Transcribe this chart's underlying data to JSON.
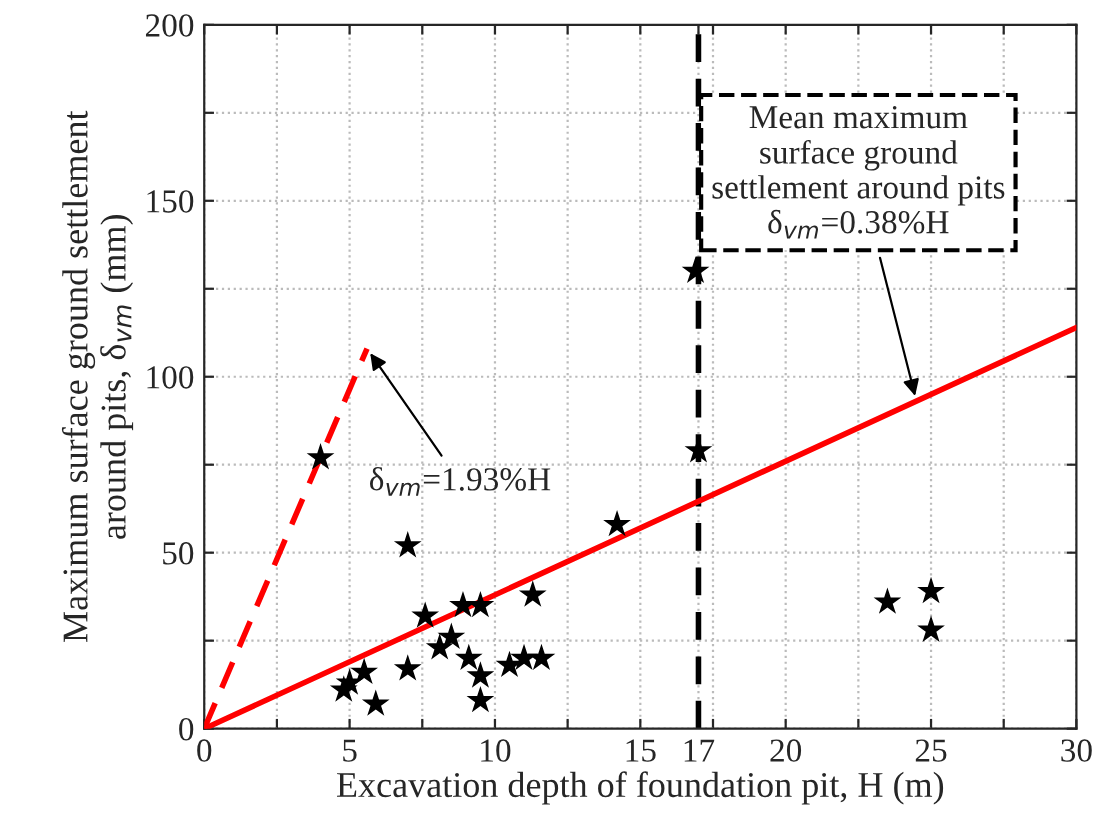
{
  "chart_data": {
    "type": "scatter",
    "xlabel": "Excavation depth of foundation pit, H (m)",
    "ylabel": "Maximum surface ground settlement\naround pits, δ$_{vm}$ (mm)",
    "xlim": [
      0,
      30
    ],
    "ylim": [
      0,
      200
    ],
    "xticks": [
      0,
      {
        "value": 2.5,
        "label": null
      },
      5,
      {
        "value": 7.5,
        "label": null
      },
      10,
      {
        "value": 12.5,
        "label": null
      },
      15,
      17,
      {
        "value": 17.5,
        "label": null
      },
      20,
      {
        "value": 22.5,
        "label": null
      },
      25,
      {
        "value": 27.5,
        "label": null
      },
      30
    ],
    "yticks": [
      0,
      {
        "value": 25,
        "label": null
      },
      50,
      {
        "value": 75,
        "label": null
      },
      100,
      {
        "value": 125,
        "label": null
      },
      150,
      {
        "value": 175,
        "label": null
      },
      200
    ],
    "grid": true,
    "legend": false,
    "series": [
      {
        "marker": "star",
        "color": "#000000",
        "x": [
          4.0,
          4.8,
          5.0,
          5.5,
          5.9,
          7.0,
          7.0,
          7.6,
          8.1,
          8.5,
          8.9,
          9.1,
          9.5,
          9.5,
          9.5,
          10.5,
          11.0,
          11.3,
          11.6,
          14.2,
          16.9,
          17.0,
          23.5,
          25.0,
          25.0
        ],
        "values": [
          77,
          11,
          13,
          16,
          7,
          17,
          52,
          32,
          23,
          26,
          35,
          20,
          35,
          15,
          8,
          18,
          20,
          38,
          20,
          58,
          130,
          79,
          36,
          39,
          28
        ]
      },
      {
        "type": "line",
        "line_style": "solid",
        "color": "#ff0000",
        "x": [
          0,
          30
        ],
        "values": [
          0,
          114
        ]
      },
      {
        "type": "line",
        "line_style": "dashed",
        "color": "#ff0000",
        "x": [
          0,
          5.6
        ],
        "values": [
          0,
          108
        ]
      }
    ],
    "ref_lines": [
      {
        "axis": "x",
        "value": 17,
        "color": "#000000",
        "line_style": "dashed"
      }
    ],
    "annotations": [
      {
        "text": "δ$_{vm}$=1.93%H",
        "x": 5.6,
        "y": 108
      },
      {
        "text": "Mean maximum\nsurface ground\nsettlement around pits\nδ$_{vm}$=0.38%H",
        "x": 24.5,
        "y": 93
      }
    ]
  }
}
